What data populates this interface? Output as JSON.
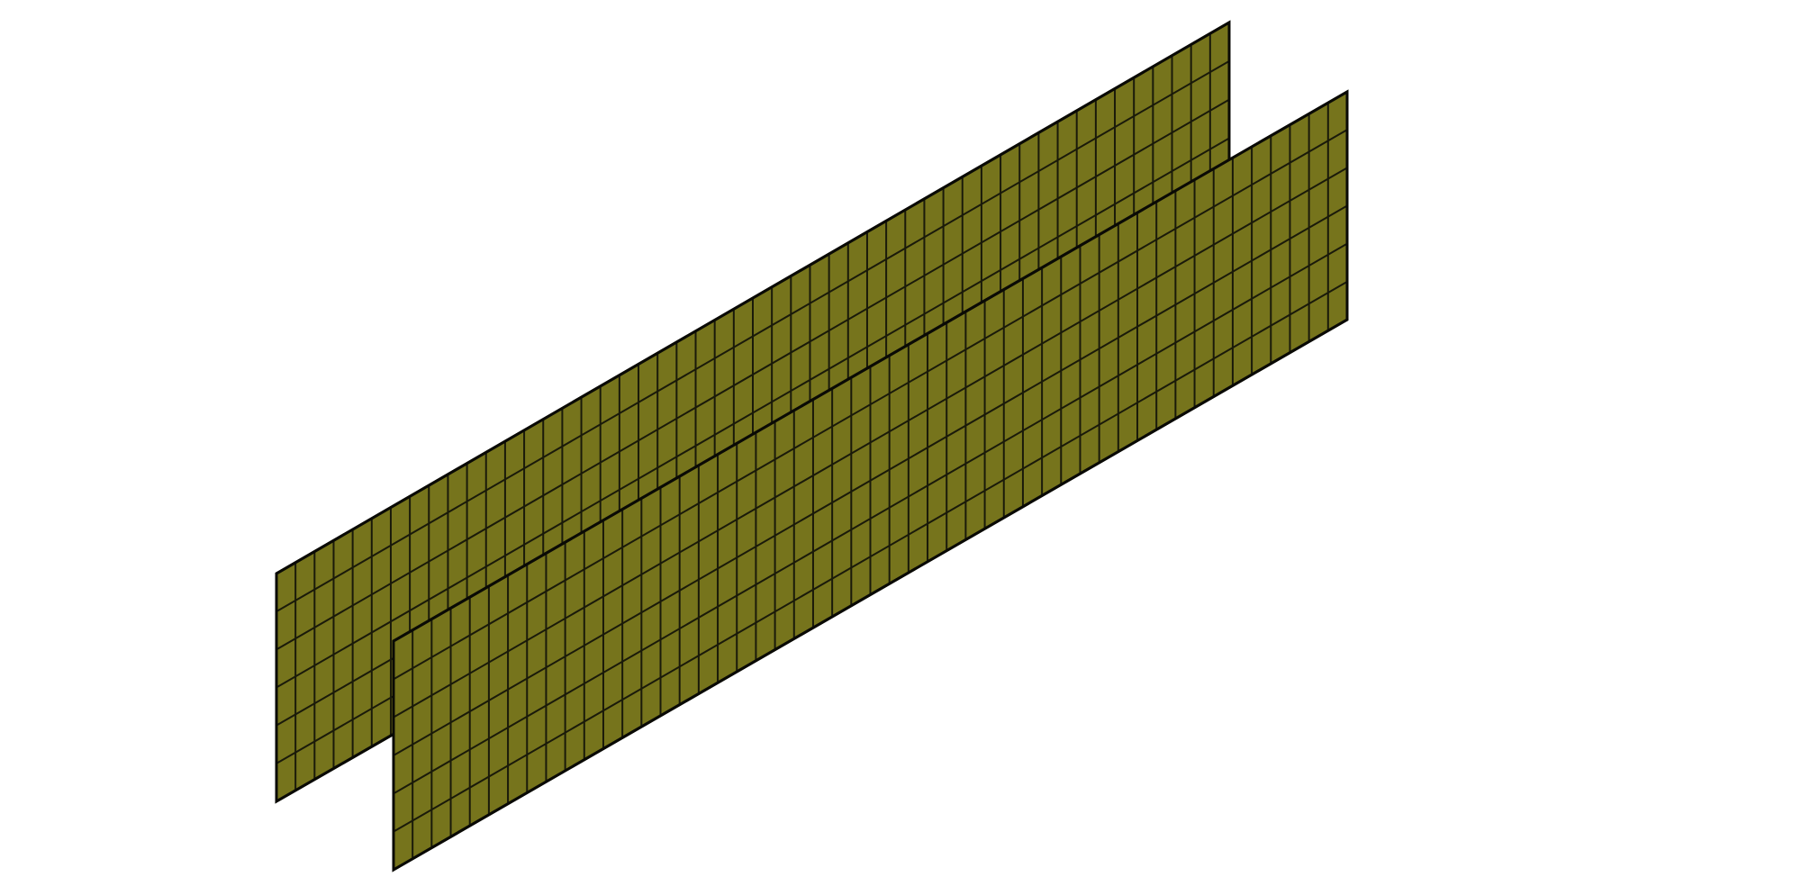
{
  "scene": {
    "description_visible": false,
    "colors": {
      "background": "#ffffff",
      "panel_fill": "#76741c",
      "grid_line": "#1a1a0a",
      "panel_edge": "#0a0a05"
    },
    "panels": [
      {
        "name": "back-mesh-panel",
        "columns": 50,
        "rows": 6
      },
      {
        "name": "front-mesh-panel",
        "columns": 50,
        "rows": 6
      }
    ]
  }
}
